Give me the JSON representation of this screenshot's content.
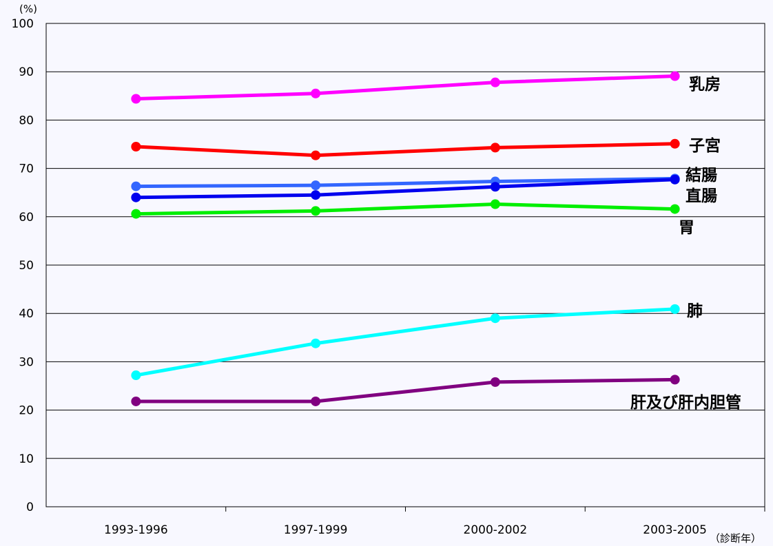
{
  "chart_data": {
    "type": "line",
    "y_unit": "(%)",
    "x_unit": "（診断年）",
    "categories": [
      "1993-1996",
      "1997-1999",
      "2000-2002",
      "2003-2005"
    ],
    "ylim": [
      0,
      100
    ],
    "yticks": [
      0,
      10,
      20,
      30,
      40,
      50,
      60,
      70,
      80,
      90,
      100
    ],
    "grid": "horizontal",
    "series": [
      {
        "name": "乳房",
        "color": "#ff00ff",
        "values": [
          84.4,
          85.5,
          87.8,
          89.1
        ]
      },
      {
        "name": "子宮",
        "color": "#ff0000",
        "values": [
          74.5,
          72.7,
          74.3,
          75.1
        ]
      },
      {
        "name": "結腸",
        "color": "#3366ff",
        "values": [
          66.3,
          66.5,
          67.3,
          67.9
        ]
      },
      {
        "name": "直腸",
        "color": "#0000ee",
        "values": [
          64.0,
          64.5,
          66.2,
          67.7
        ]
      },
      {
        "name": "胃",
        "color": "#00ee00",
        "values": [
          60.6,
          61.2,
          62.6,
          61.6
        ]
      },
      {
        "name": "肺",
        "color": "#00ffff",
        "values": [
          27.2,
          33.8,
          39.0,
          40.9
        ]
      },
      {
        "name": "肝及び肝内胆管",
        "color": "#800080",
        "values": [
          21.8,
          21.8,
          25.8,
          26.3
        ]
      }
    ]
  }
}
